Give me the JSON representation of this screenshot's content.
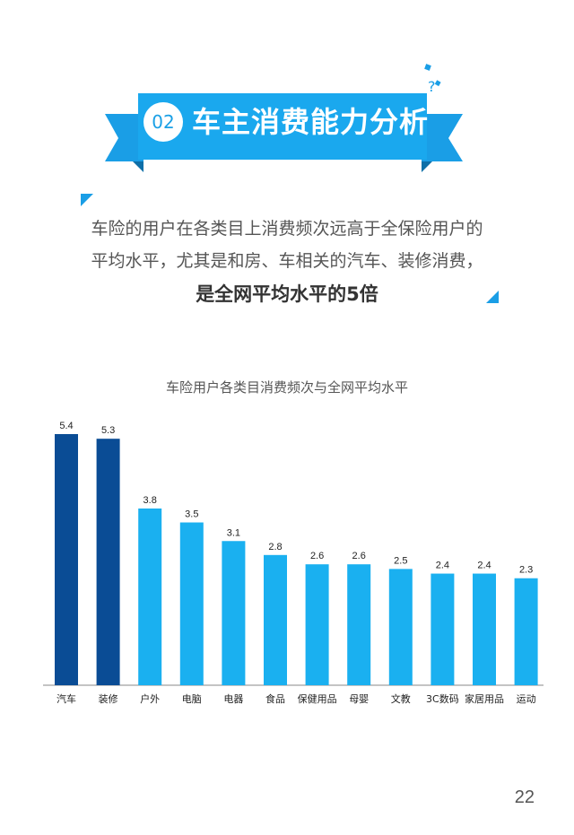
{
  "header": {
    "section_number": "02",
    "section_title": "车主消费能力分析"
  },
  "intro": {
    "line1": "车险的用户在各类目上消费频次远高于全保险用户的",
    "line2": "平均水平，尤其是和房、车相关的汽车、装修消费，",
    "line3": "是全网平均水平的5倍"
  },
  "chart_data": {
    "type": "bar",
    "title": "车险用户各类目消费频次与全网平均水平",
    "categories": [
      "汽车",
      "装修",
      "户外",
      "电脑",
      "电器",
      "食品",
      "保健用品",
      "母婴",
      "文教",
      "3C数码",
      "家居用品",
      "运动"
    ],
    "values": [
      5.4,
      5.3,
      3.8,
      3.5,
      3.1,
      2.8,
      2.6,
      2.6,
      2.5,
      2.4,
      2.4,
      2.3
    ],
    "highlight_count": 2,
    "colors": {
      "highlight": "#0a4c95",
      "normal": "#1ab0f0"
    },
    "ylim": [
      0,
      5.4
    ],
    "grid": false,
    "xlabel": "",
    "ylabel": ""
  },
  "footer": {
    "page_number": "22"
  },
  "colors": {
    "accent": "#1aa0e6",
    "accent_dark": "#0e73ad"
  }
}
